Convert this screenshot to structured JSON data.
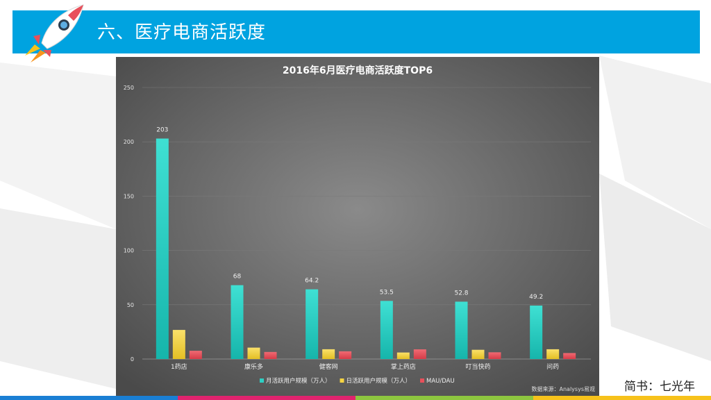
{
  "slide": {
    "title": "六、医疗电商活跃度",
    "attribution": "简书：七光年",
    "colors": {
      "header": "#00a3e0",
      "strip": [
        "#1a7fd4",
        "#e0236e",
        "#8dc63f",
        "#f7c21b"
      ]
    }
  },
  "chart_data": {
    "type": "bar",
    "title": "2016年6月医疗电商活跃度TOP6",
    "categories": [
      "1药店",
      "康乐多",
      "健客网",
      "掌上药店",
      "叮当快药",
      "问药"
    ],
    "series": [
      {
        "name": "月活跃用户规模（万人）",
        "color": "#2ecfc3",
        "values": [
          203,
          68,
          64.2,
          53.5,
          52.8,
          49.2
        ],
        "labels": [
          "203",
          "68",
          "64.2",
          "53.5",
          "52.8",
          "49.2"
        ]
      },
      {
        "name": "日活跃用户规模（万人）",
        "color": "#f5d442",
        "values": [
          26.8,
          10.5,
          9.0,
          6.0,
          8.5,
          9.0
        ]
      },
      {
        "name": "MAU/DAU",
        "color": "#e8505b",
        "values": [
          7.6,
          6.5,
          7.1,
          8.9,
          6.2,
          5.5
        ]
      }
    ],
    "ylim": [
      0,
      250
    ],
    "yticks": [
      0,
      50,
      100,
      150,
      200,
      250
    ],
    "grid": true,
    "legend_position": "bottom",
    "source": "数据来源：Analysys易观"
  }
}
